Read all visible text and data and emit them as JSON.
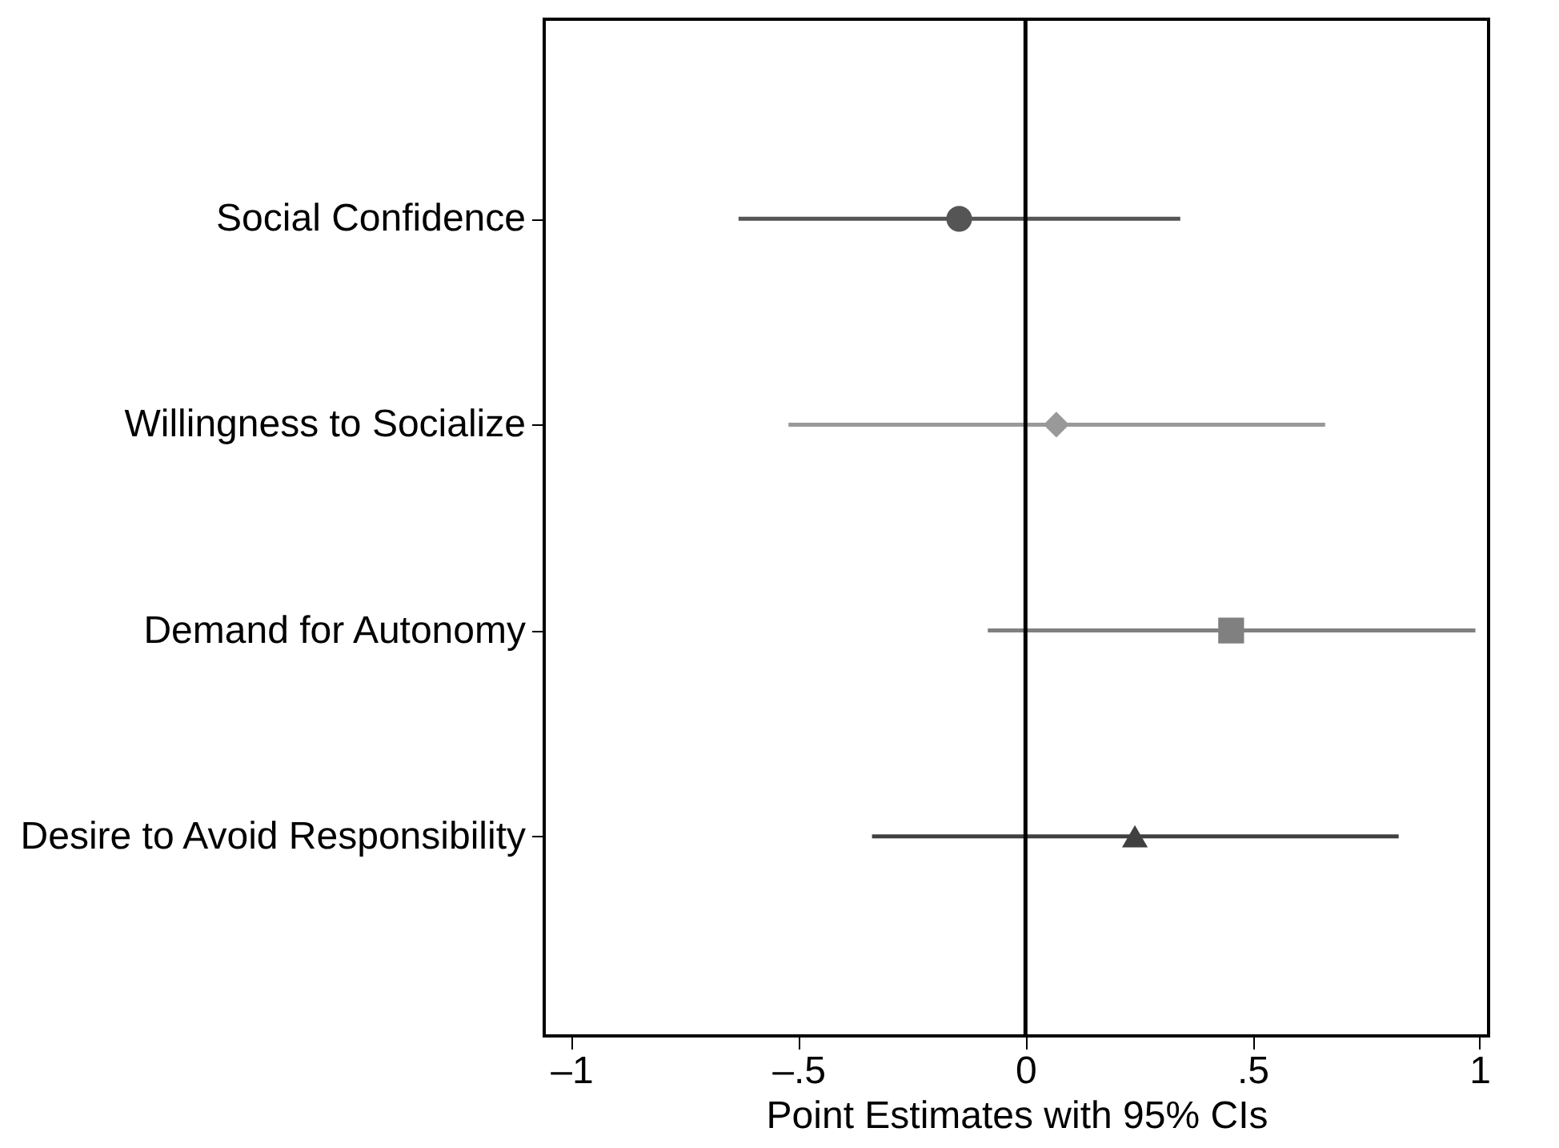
{
  "chart_data": {
    "type": "scatter",
    "xlabel": "Point Estimates with 95% CIs",
    "categories": [
      "Social Confidence",
      "Willingness to Socialize",
      "Demand for Autonomy",
      "Desire to Avoid Responsibility"
    ],
    "orientation": "horizontal",
    "xlim": [
      -1.06,
      1.02
    ],
    "xticks": [
      {
        "value": -1,
        "label": "–1"
      },
      {
        "value": -0.5,
        "label": "–.5"
      },
      0,
      {
        "value": 0.5,
        "label": ".5"
      },
      1
    ],
    "grid": false,
    "series": [
      {
        "color": "#555555",
        "marker": "circle",
        "values": [
          -0.146,
          null,
          null,
          null
        ],
        "errors": [
          [
            -0.632,
            0.341
          ],
          null,
          null,
          null
        ]
      },
      {
        "color": "#999999",
        "marker": "diamond",
        "values": [
          null,
          0.068,
          null,
          null
        ],
        "errors": [
          null,
          [
            -0.522,
            0.66
          ],
          null,
          null
        ]
      },
      {
        "color": "#808080",
        "marker": "square",
        "values": [
          null,
          null,
          0.453,
          null
        ],
        "errors": [
          null,
          null,
          [
            -0.083,
            0.991
          ],
          null
        ]
      },
      {
        "color": "#404040",
        "marker": "triangle",
        "values": [
          null,
          null,
          null,
          0.241
        ],
        "errors": [
          null,
          null,
          null,
          [
            -0.338,
            0.822
          ]
        ]
      }
    ],
    "ref_lines": [
      {
        "axis": "x",
        "value": 0,
        "color": "#000000"
      }
    ]
  }
}
